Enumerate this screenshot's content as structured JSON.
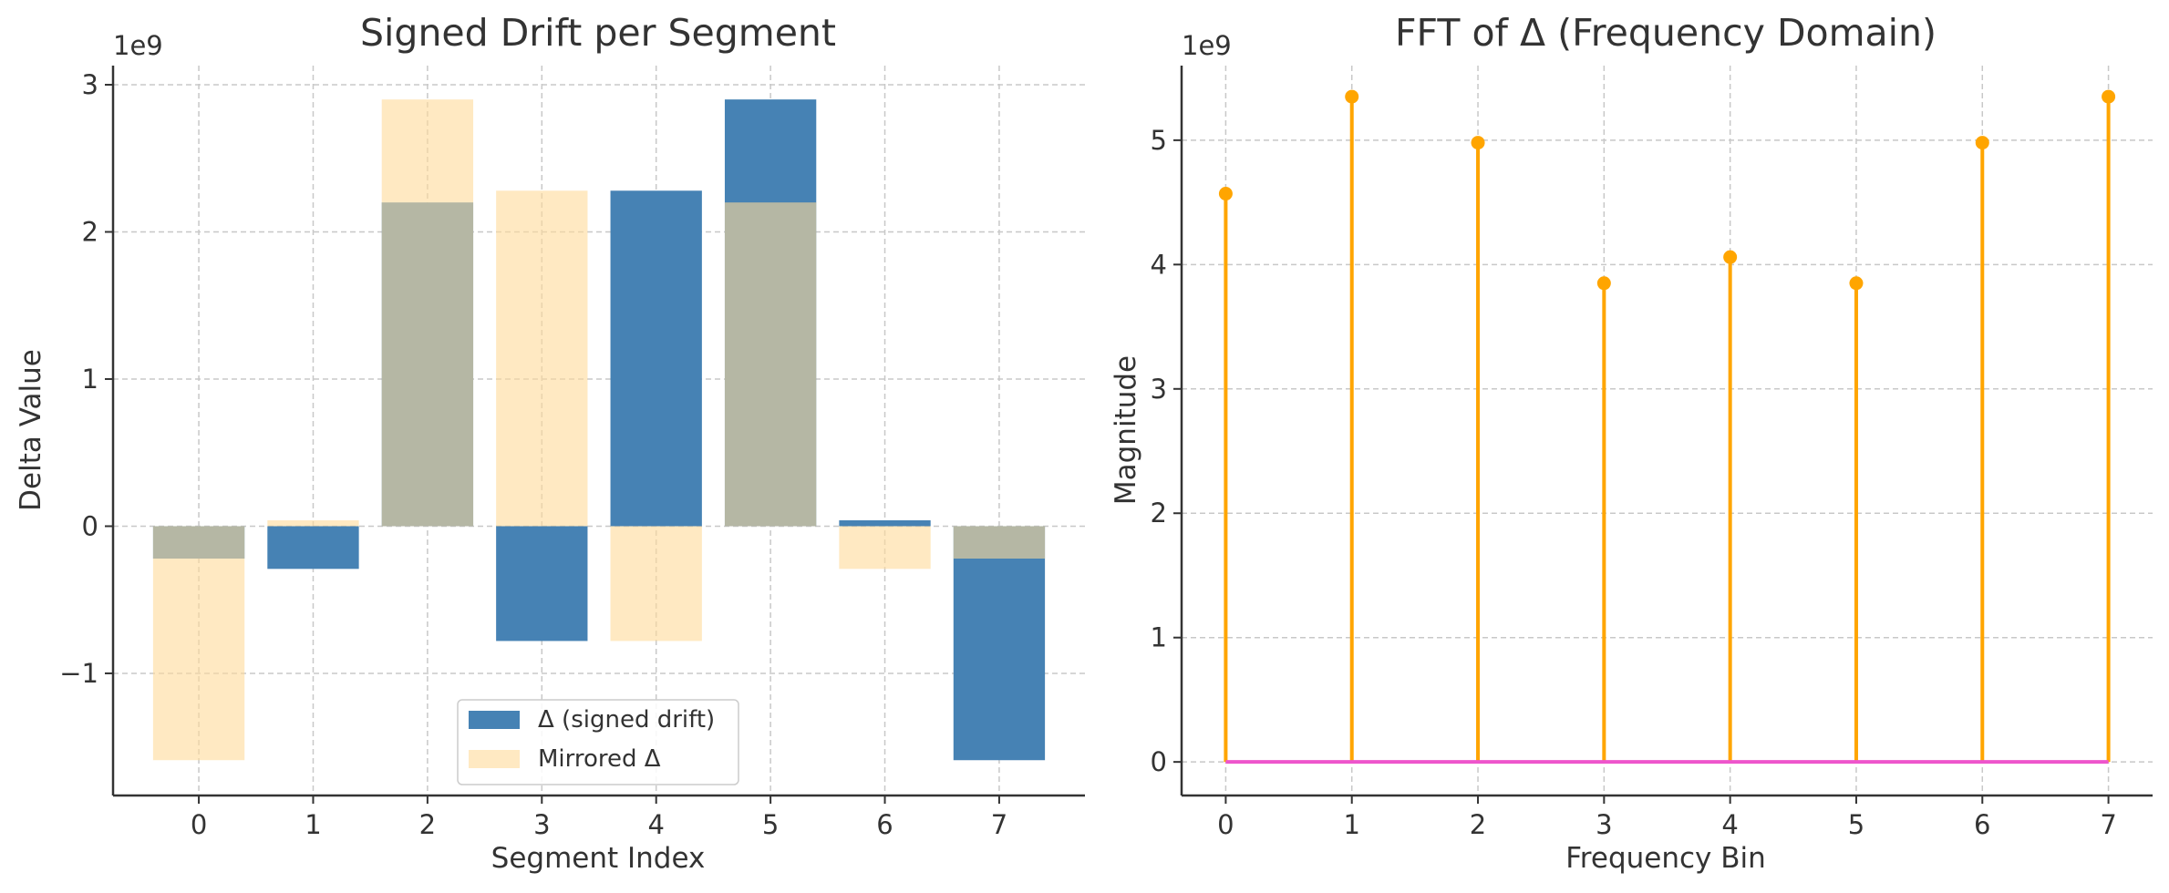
{
  "chart_data": [
    {
      "type": "bar",
      "title": "Signed Drift per Segment",
      "xlabel": "Segment Index",
      "ylabel": "Delta Value",
      "offset_label": "1e9",
      "categories": [
        "0",
        "1",
        "2",
        "3",
        "4",
        "5",
        "6",
        "7"
      ],
      "series": [
        {
          "name": "Δ (signed drift)",
          "color": "#4682b4",
          "values": [
            -220000000.0,
            -290000000.0,
            2200000000.0,
            -780000000.0,
            2280000000.0,
            2900000000.0,
            40000000.0,
            -1590000000.0
          ]
        },
        {
          "name": "Mirrored Δ",
          "color": "#ffdb99",
          "values": [
            -1590000000.0,
            40000000.0,
            2900000000.0,
            2280000000.0,
            -780000000.0,
            2200000000.0,
            -290000000.0,
            -220000000.0
          ]
        }
      ],
      "ylim": [
        -1830000000.0,
        3130000000.0
      ],
      "yticks": [
        -1,
        0,
        1,
        2,
        3
      ],
      "ytick_labels": [
        "−1",
        "0",
        "1",
        "2",
        "3"
      ],
      "legend": "lower center",
      "grid": true
    },
    {
      "type": "stem",
      "title": "FFT of Δ (Frequency Domain)",
      "xlabel": "Frequency Bin",
      "ylabel": "Magnitude",
      "offset_label": "1e9",
      "x": [
        0,
        1,
        2,
        3,
        4,
        5,
        6,
        7
      ],
      "values": [
        4570000000.0,
        5350000000.0,
        4980000000.0,
        3850000000.0,
        4060000000.0,
        3850000000.0,
        4980000000.0,
        5350000000.0
      ],
      "stem_color": "#ffa500",
      "baseline_color": "#ee55cc",
      "ylim": [
        -270000000.0,
        5600000000.0
      ],
      "yticks": [
        0,
        1,
        2,
        3,
        4,
        5
      ],
      "grid": true
    }
  ]
}
